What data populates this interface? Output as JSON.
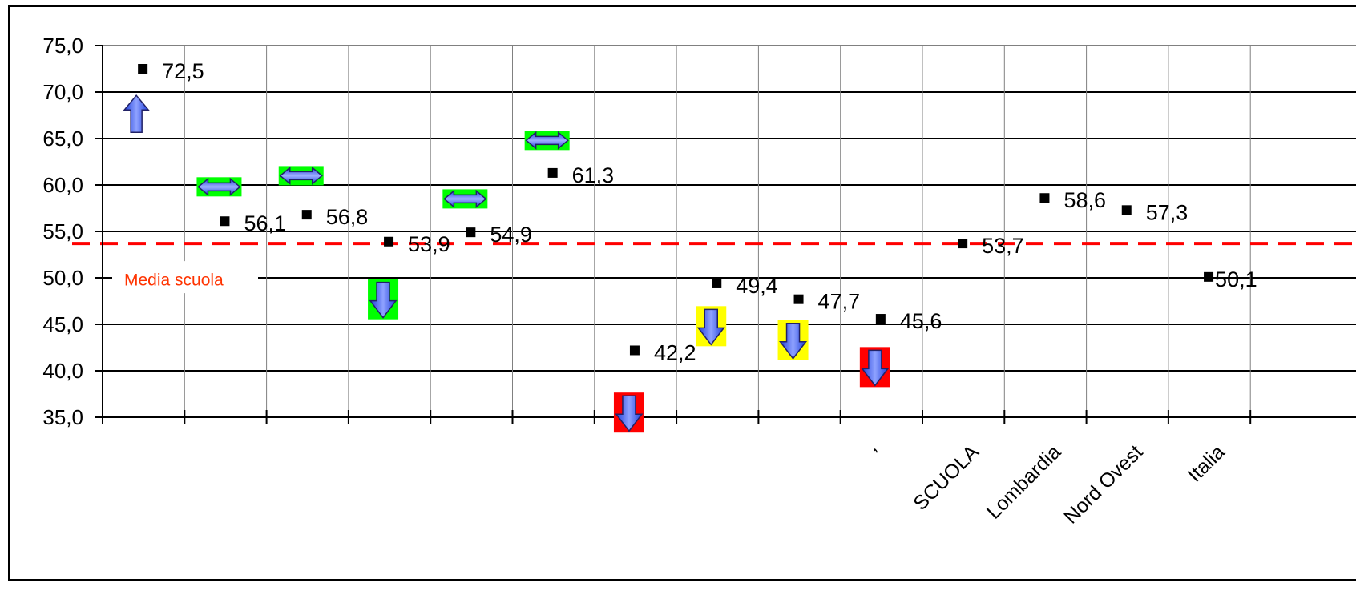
{
  "chart_data": {
    "type": "scatter",
    "title": "",
    "xlabel": "",
    "ylabel": "",
    "ylim": [
      35,
      75
    ],
    "yticks": [
      "75,0",
      "70,0",
      "65,0",
      "60,0",
      "55,0",
      "50,0",
      "45,0",
      "40,0",
      "35,0"
    ],
    "grid": true,
    "categories": [
      "",
      "",
      "",
      "",
      "",
      "",
      "",
      "",
      "",
      "",
      "SCUOLA",
      "Lombardia",
      "Nord Ovest",
      "Italia"
    ],
    "partial_category_label": "’",
    "points": [
      {
        "x": 0,
        "y": 72.5,
        "label": "72,5"
      },
      {
        "x": 1,
        "y": 56.1,
        "label": "56,1"
      },
      {
        "x": 2,
        "y": 56.8,
        "label": "56,8"
      },
      {
        "x": 3,
        "y": 53.9,
        "label": "53,9"
      },
      {
        "x": 4,
        "y": 54.9,
        "label": "54,9"
      },
      {
        "x": 5,
        "y": 61.3,
        "label": "61,3"
      },
      {
        "x": 6,
        "y": 42.2,
        "label": "42,2"
      },
      {
        "x": 7,
        "y": 49.4,
        "label": "49,4"
      },
      {
        "x": 8,
        "y": 47.7,
        "label": "47,7"
      },
      {
        "x": 9,
        "y": 45.6,
        "label": "45,6"
      },
      {
        "x": 10,
        "y": 53.7,
        "label": "53,7"
      },
      {
        "x": 11,
        "y": 58.6,
        "label": "58,6"
      },
      {
        "x": 12,
        "y": 57.3,
        "label": "57,3"
      },
      {
        "x": 13,
        "y": 50.1,
        "label": "50,1"
      }
    ],
    "reference_line": {
      "value": 53.7,
      "label": "Media scuola",
      "color": "#ff0000"
    },
    "indicators": [
      {
        "x": 0,
        "y": 68.0,
        "type": "up",
        "bg": ""
      },
      {
        "x": 1,
        "y": 59.8,
        "type": "both",
        "bg": "#00ff00"
      },
      {
        "x": 2,
        "y": 61.0,
        "type": "both",
        "bg": "#00ff00"
      },
      {
        "x": 3,
        "y": 47.7,
        "type": "down",
        "bg": "#00ff00"
      },
      {
        "x": 4,
        "y": 58.5,
        "type": "both",
        "bg": "#00ff00"
      },
      {
        "x": 5,
        "y": 64.8,
        "type": "both",
        "bg": "#00ff00"
      },
      {
        "x": 6,
        "y": 35.5,
        "type": "down",
        "bg": "#ff0000"
      },
      {
        "x": 7,
        "y": 44.8,
        "type": "down",
        "bg": "#ffff00"
      },
      {
        "x": 8,
        "y": 43.3,
        "type": "down",
        "bg": "#ffff00"
      },
      {
        "x": 9,
        "y": 40.4,
        "type": "down",
        "bg": "#ff0000"
      }
    ],
    "colors": {
      "marker": "#000000",
      "arrow": "#3355ee",
      "arrow_light": "#99aaff",
      "arrow_outline": "#333399"
    }
  }
}
